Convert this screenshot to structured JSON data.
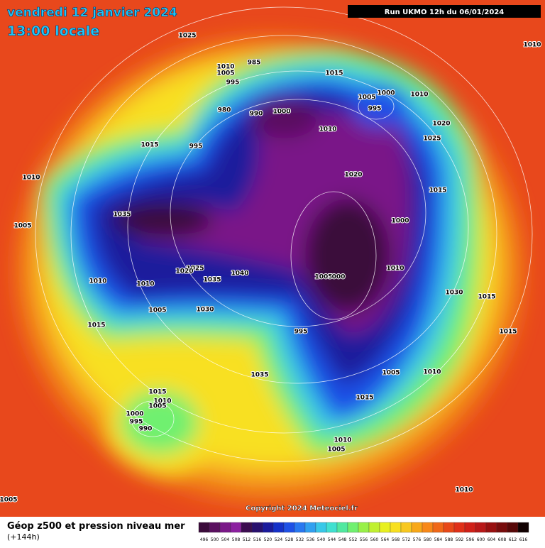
{
  "header": {
    "date": "vendredi 12 janvier 2024",
    "time": "13:00 locale",
    "run": "Run UKMO 12h du 06/01/2024"
  },
  "copyright": "Copyright 2024 Meteociel.fr",
  "legend": {
    "title": "Géop z500 et pression niveau mer",
    "subtitle": "(+144h)",
    "values": [
      496,
      500,
      504,
      508,
      512,
      516,
      520,
      524,
      528,
      532,
      536,
      540,
      544,
      548,
      552,
      556,
      560,
      564,
      568,
      572,
      576,
      580,
      584,
      588,
      592,
      596,
      600,
      604,
      608,
      612,
      616
    ],
    "colors": [
      "#3a0a3a",
      "#5a1060",
      "#7a1888",
      "#8c20a0",
      "#3c0c50",
      "#28106e",
      "#1a1a9c",
      "#1430c8",
      "#1e50e6",
      "#2878f0",
      "#30a0f0",
      "#38c8e8",
      "#40e0d0",
      "#50e8a0",
      "#70f070",
      "#98f048",
      "#c0f030",
      "#e8f020",
      "#f8e020",
      "#f8c820",
      "#f8a818",
      "#f88818",
      "#f06818",
      "#e84818",
      "#e03018",
      "#d02018",
      "#b81818",
      "#981010",
      "#780c0c",
      "#580808",
      "#100000"
    ]
  },
  "map": {
    "labels": [
      "1025",
      "1010",
      "985",
      "1010",
      "1005",
      "995",
      "1015",
      "1000",
      "1005",
      "1010",
      "995",
      "980",
      "990",
      "1000",
      "1010",
      "1020",
      "1025",
      "1015",
      "995",
      "1020",
      "1010",
      "1015",
      "1035",
      "1000",
      "1005",
      "1010",
      "1025",
      "1020",
      "1040",
      "1005",
      "000",
      "1010",
      "1010",
      "1035",
      "1030",
      "1015",
      "1005",
      "1030",
      "995",
      "1015",
      "1015",
      "1005",
      "1010",
      "1035",
      "1015",
      "1015",
      "1010",
      "1005",
      "1000",
      "995",
      "990",
      "1010",
      "1005",
      "1010",
      "1005"
    ]
  }
}
